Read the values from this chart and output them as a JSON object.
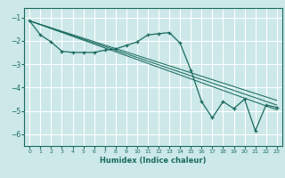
{
  "xlabel": "Humidex (Indice chaleur)",
  "bg_color": "#cce8e8",
  "line_color": "#1a6b60",
  "grid_color": "#ffffff",
  "xlim": [
    -0.5,
    23.5
  ],
  "ylim": [
    -6.5,
    -0.6
  ],
  "yticks": [
    -6,
    -5,
    -4,
    -3,
    -2,
    -1
  ],
  "xticks": [
    0,
    1,
    2,
    3,
    4,
    5,
    6,
    7,
    8,
    9,
    10,
    11,
    12,
    13,
    14,
    15,
    16,
    17,
    18,
    19,
    20,
    21,
    22,
    23
  ],
  "main_series": {
    "x": [
      0,
      1,
      2,
      3,
      4,
      5,
      6,
      7,
      8,
      9,
      10,
      11,
      12,
      13,
      14,
      15,
      16,
      17,
      18,
      19,
      20,
      21,
      22,
      23
    ],
    "y": [
      -1.15,
      -1.75,
      -2.05,
      -2.45,
      -2.5,
      -2.5,
      -2.5,
      -2.4,
      -2.35,
      -2.2,
      -2.05,
      -1.75,
      -1.7,
      -1.65,
      -2.1,
      -3.25,
      -4.6,
      -5.3,
      -4.6,
      -4.9,
      -4.5,
      -5.85,
      -4.75,
      -4.85
    ]
  },
  "trend_lines": [
    {
      "x0": 0,
      "y0": -1.15,
      "x1": 23,
      "y1": -4.55
    },
    {
      "x0": 0,
      "y0": -1.15,
      "x1": 23,
      "y1": -4.75
    },
    {
      "x0": 0,
      "y0": -1.15,
      "x1": 23,
      "y1": -4.95
    }
  ]
}
